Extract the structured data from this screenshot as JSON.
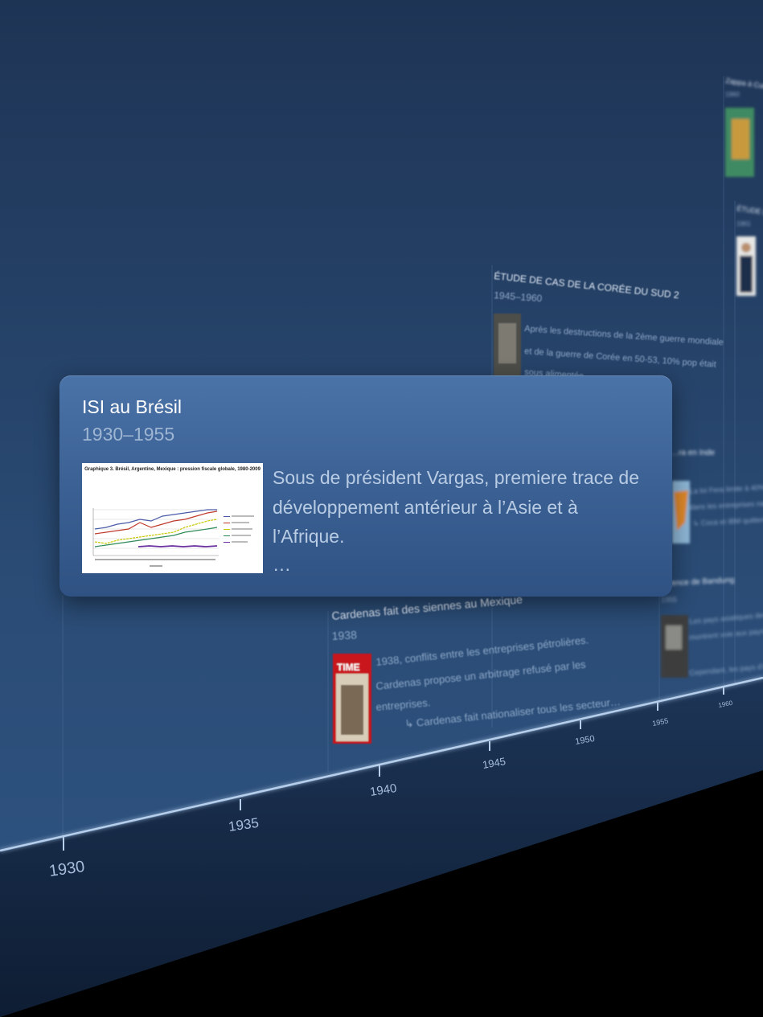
{
  "timeline": {
    "axis_ticks": [
      "1930",
      "1935",
      "1940",
      "1945",
      "1950",
      "1955",
      "1960"
    ]
  },
  "focus_event": {
    "title": "ISI au Brésil",
    "dates": "1930–1955",
    "description": "Sous de président Vargas, premiere trace de développement antérieur à l’Asie et à l’Afrique.",
    "more": "…",
    "thumbnail_title": "Graphique 3. Brésil, Argentine, Mexique : pression fiscale globale, 1980-2009"
  },
  "background_events": [
    {
      "title": "ÉTUDE DE CAS DE LA CORÉE DU SUD 2",
      "dates": "1945–1960",
      "lines": [
        "Après les destructions de la 2ème guerre mondiale",
        "et de la guerre de Corée en 50-53, 10% pop était",
        "sous alimentée…"
      ]
    },
    {
      "title": "Cardenas fait des siennes au Mexique",
      "dates": "1938",
      "lines": [
        "1938, conflits entre les entreprises pétrolières.",
        "Cardenas propose un arbitrage refusé par les",
        "entreprises."
      ],
      "link": "↳ Cardenas fait nationaliser tous les secteur…",
      "thumb_label": "TIME"
    },
    {
      "title": "…ra en Inde",
      "lines": [
        "La loi Fera limite à 40% part capital",
        "dans les entreprises nationales.",
        "↳ Coca et IBM quittent l'Inde."
      ]
    },
    {
      "title": "…rence de Bandung",
      "dates": "1955",
      "lines": [
        "Les pays asiatiques devenus indépendants",
        "montrent voie aux pays d'Afrique.",
        "Cependant, les pays d'AL ne sont pas…"
      ]
    },
    {
      "title": "Zappa à Cuba dans…",
      "dates": "1960"
    },
    {
      "title": "ÉTUDE DE CA…",
      "dates": "1961"
    }
  ],
  "colors": {
    "wall_top": "#1f3657",
    "wall_bottom": "#2f5584",
    "card_top": "#4a73a8",
    "card_bottom": "#2f5283",
    "axis_line": "#a9c3e4",
    "floor": "#000000"
  }
}
